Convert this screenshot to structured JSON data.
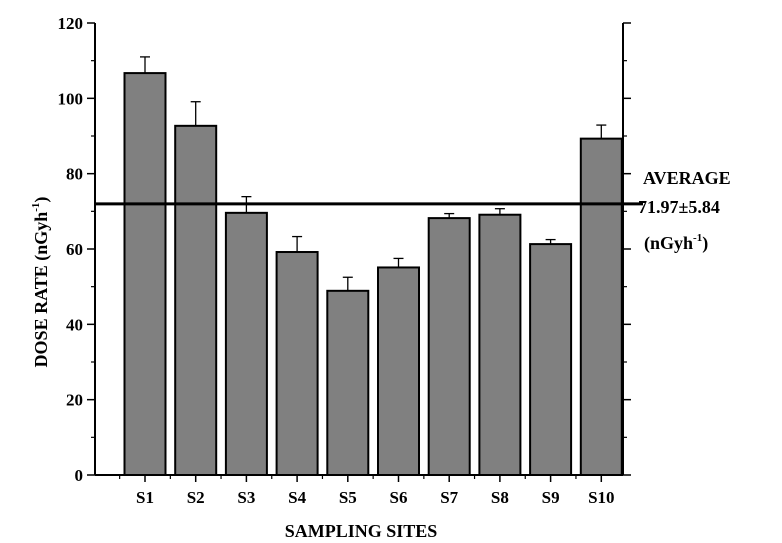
{
  "chart_data": {
    "type": "bar",
    "xlabel": "SAMPLING SITES",
    "ylabel_main": "DOSE  RATE (nGyh",
    "ylabel_sup": "-1",
    "ylabel_close": ")",
    "categories": [
      "S1",
      "S2",
      "S3",
      "S4",
      "S5",
      "S6",
      "S7",
      "S8",
      "S9",
      "S10"
    ],
    "values": [
      106.7,
      92.7,
      69.6,
      59.2,
      48.9,
      55.1,
      68.2,
      69.1,
      61.3,
      89.3
    ],
    "errors": [
      4.3,
      6.4,
      4.3,
      4.1,
      3.6,
      2.4,
      1.2,
      1.6,
      1.2,
      3.6
    ],
    "ylim": [
      0,
      120
    ],
    "yticks": [
      0,
      20,
      40,
      60,
      80,
      100,
      120
    ],
    "bar_color": "#808080",
    "average": {
      "value": 71.97,
      "line1": "AVERAGE",
      "line2": "71.97±5.84",
      "line3_main": "(nGyh",
      "line3_sup": "-1",
      "line3_close": ")"
    }
  }
}
